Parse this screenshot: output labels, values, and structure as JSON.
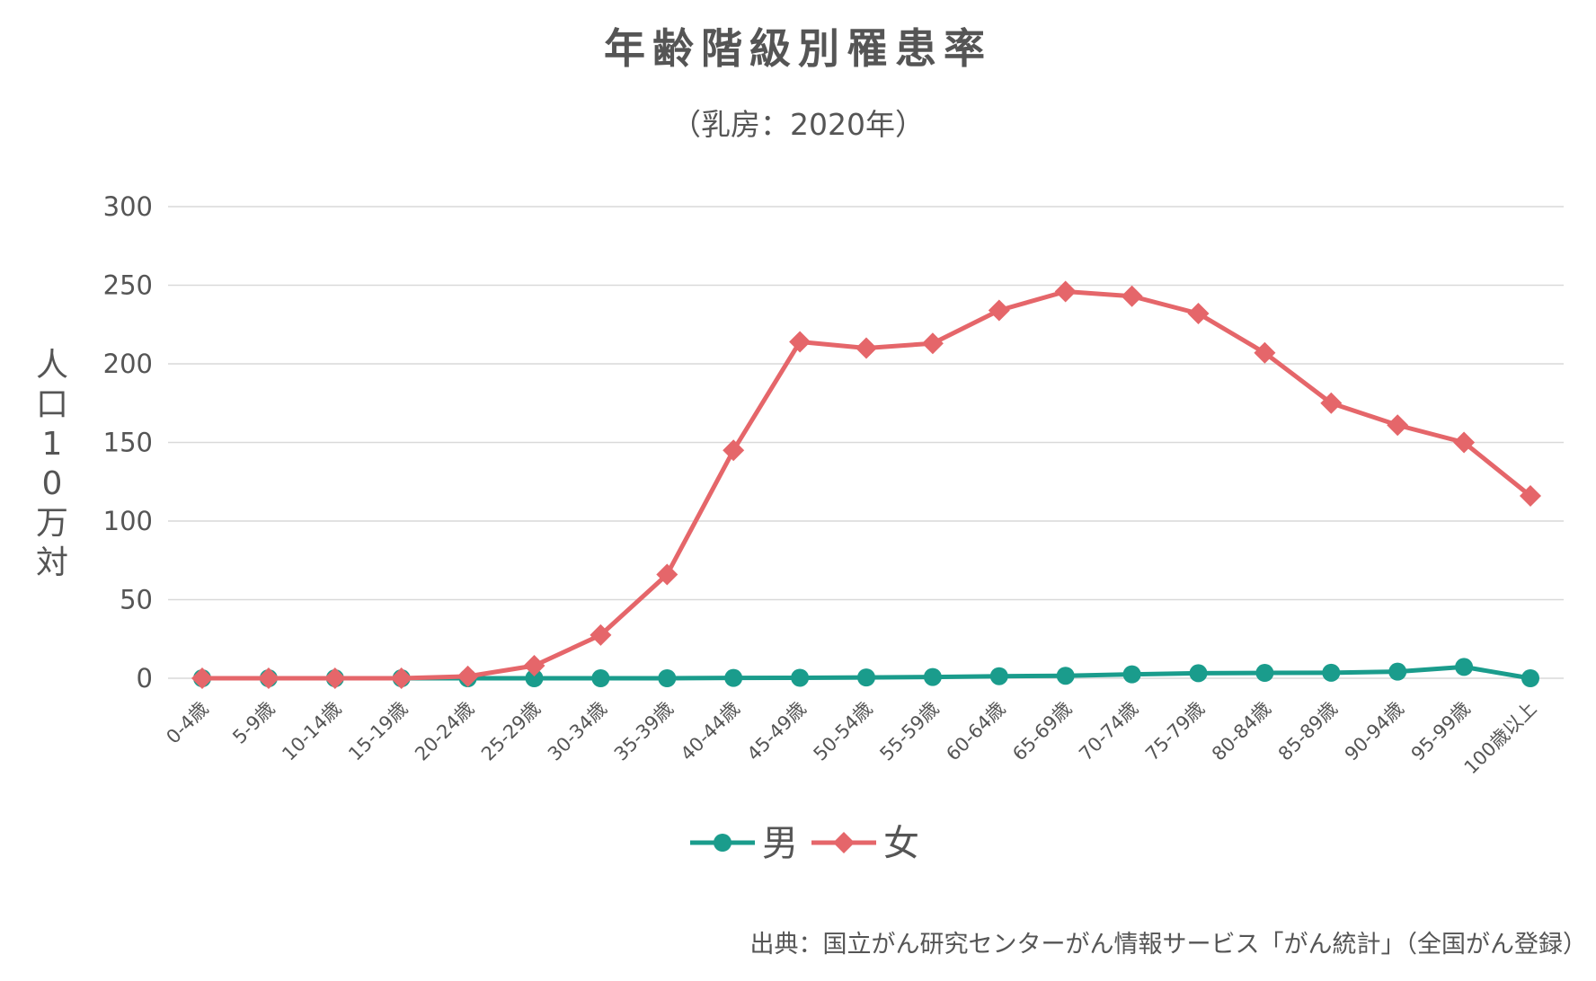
{
  "chart_data": {
    "type": "line",
    "title": "年齢階級別罹患率",
    "subtitle": "（乳房：2020年）",
    "ylabel": "人口10万対",
    "xlabel": "",
    "ylim": [
      0,
      300
    ],
    "yticks": [
      0,
      50,
      100,
      150,
      200,
      250,
      300
    ],
    "grid": true,
    "legend_position": "bottom",
    "categories": [
      "0-4歳",
      "5-9歳",
      "10-14歳",
      "15-19歳",
      "20-24歳",
      "25-29歳",
      "30-34歳",
      "35-39歳",
      "40-44歳",
      "45-49歳",
      "50-54歳",
      "55-59歳",
      "60-64歳",
      "65-69歳",
      "70-74歳",
      "75-79歳",
      "80-84歳",
      "85-89歳",
      "90-94歳",
      "95-99歳",
      "100歳以上"
    ],
    "series": [
      {
        "name": "男",
        "color": "#1a9c8c",
        "marker": "circle",
        "values": [
          0,
          0,
          0,
          0,
          0,
          0,
          0,
          0,
          0.2,
          0.3,
          0.5,
          0.8,
          1.3,
          1.6,
          2.5,
          3.2,
          3.4,
          3.5,
          4.2,
          7.2,
          0
        ]
      },
      {
        "name": "女",
        "color": "#e5666a",
        "marker": "diamond",
        "values": [
          0,
          0,
          0,
          0,
          1.2,
          8.0,
          27.5,
          66.0,
          145.0,
          214.0,
          210.0,
          213.0,
          234.0,
          246.0,
          243.0,
          232.0,
          207.0,
          175.0,
          161.0,
          150.0,
          116.0
        ]
      }
    ],
    "source": "出典：国立がん研究センターがん情報サービス「がん統計」（全国がん登録）"
  }
}
